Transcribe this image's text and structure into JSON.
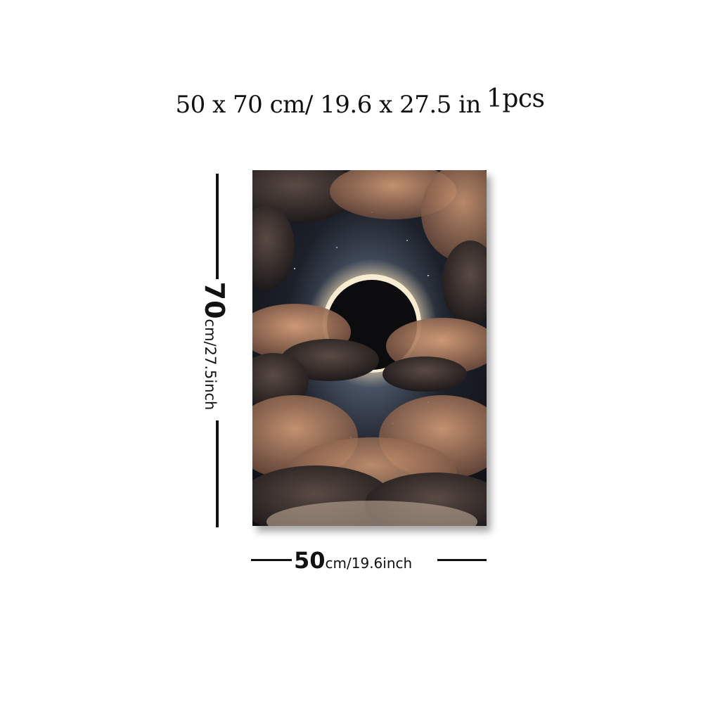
{
  "title": {
    "size_text": "50 x 70 cm/ 19.6 x 27.5 in",
    "quantity": "1pcs"
  },
  "height_label": {
    "value": "70",
    "unit": "cm/27.5inch"
  },
  "width_label": {
    "value": "50",
    "unit": "cm/19.6inch"
  },
  "artwork": {
    "subject": "solar-eclipse-among-clouds",
    "colors": {
      "sky_dark": "#1a1c22",
      "corona_glow": "#f3e2c0",
      "cloud_warm": "#c98f6a",
      "cloud_dark": "#2e2624",
      "moon": "#0c0b0d"
    }
  }
}
